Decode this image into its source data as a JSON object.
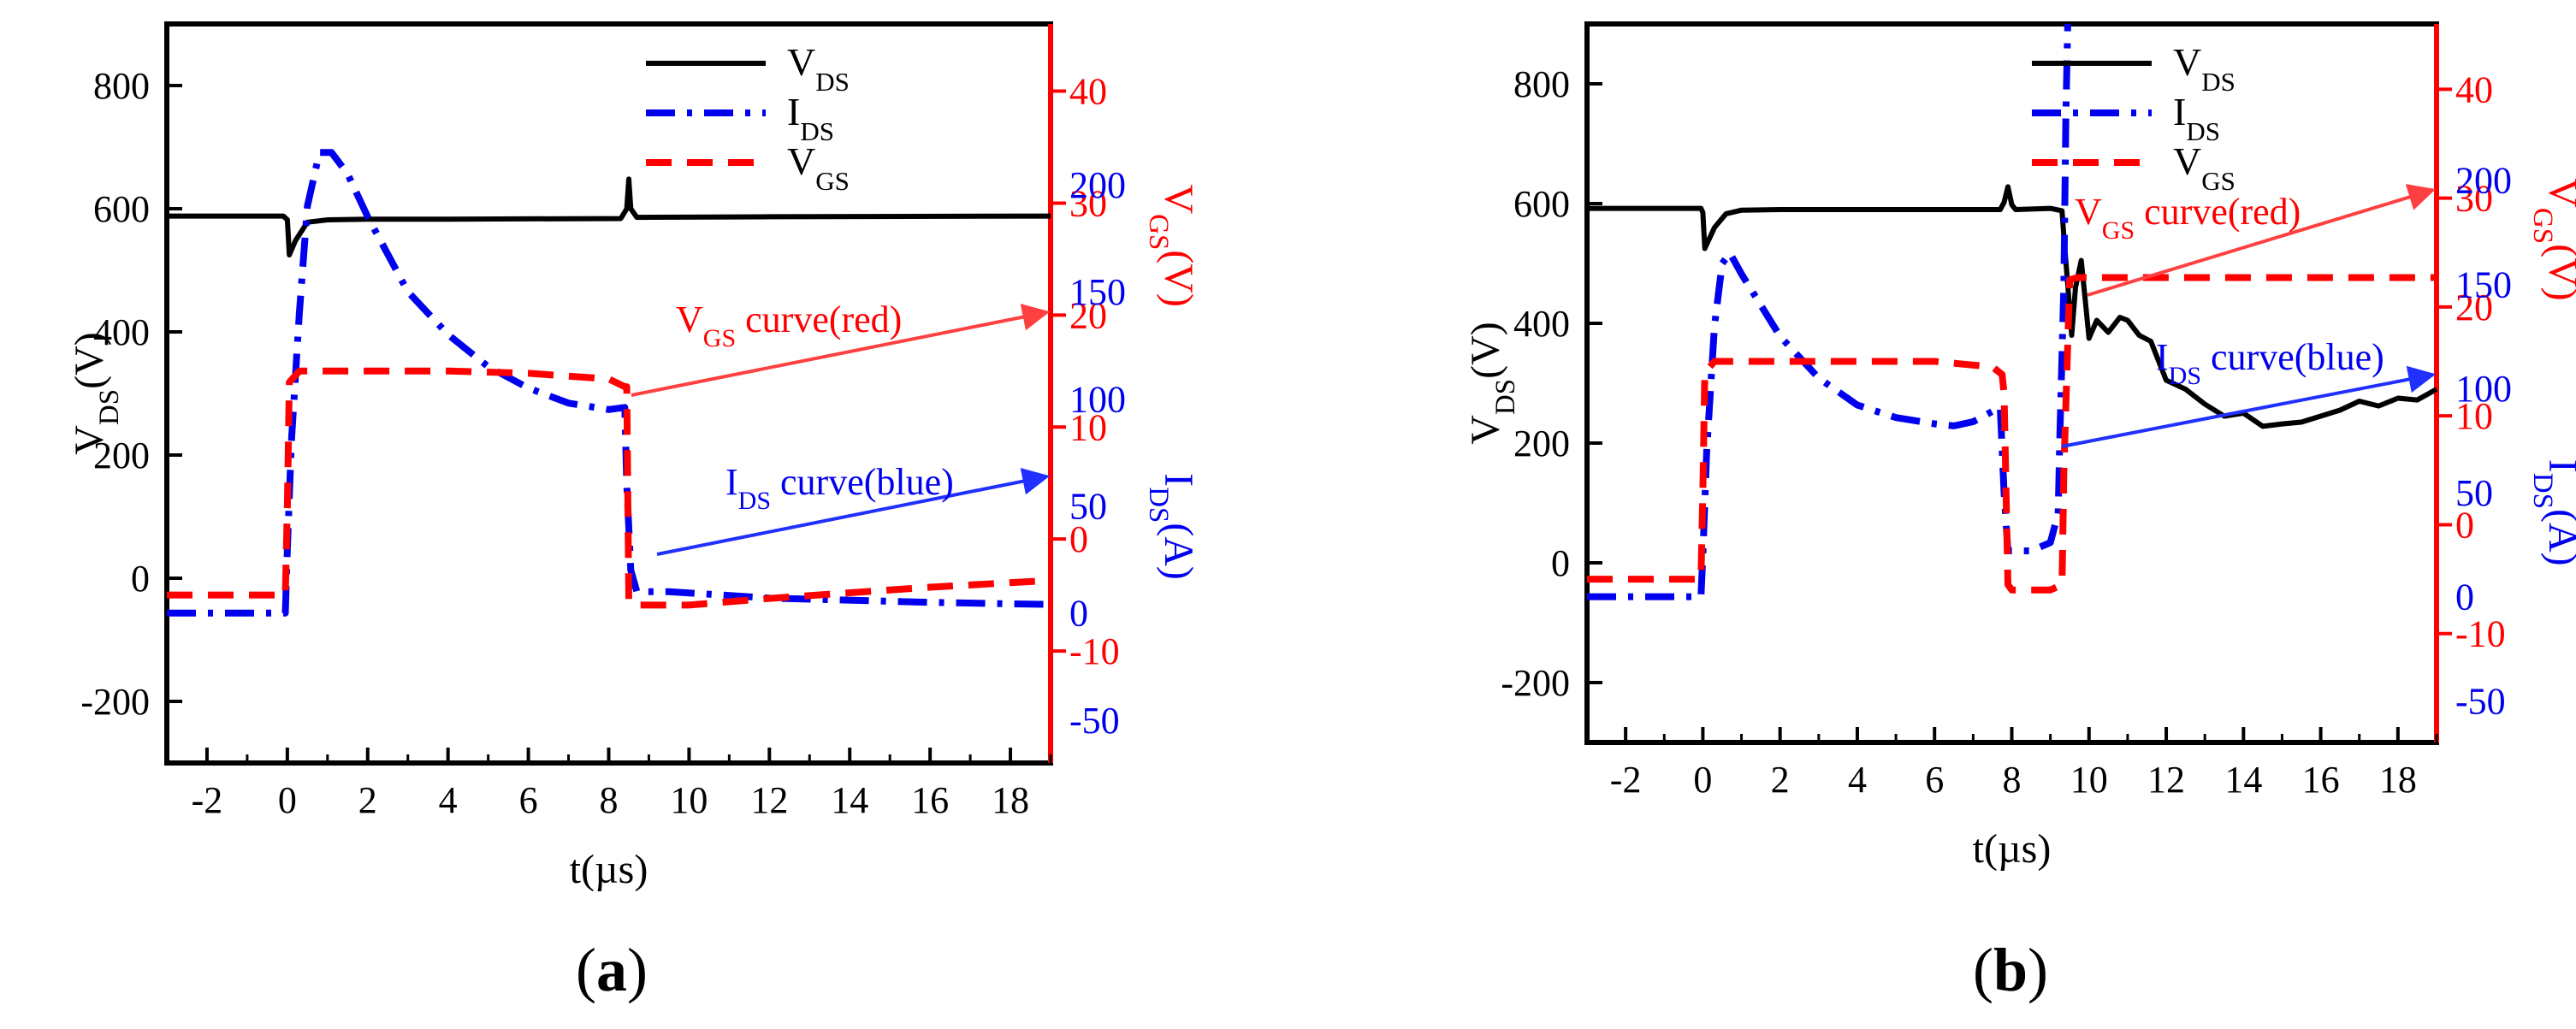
{
  "colors": {
    "vds": "#000000",
    "ids": "#0000ee",
    "vgs": "#ff0000",
    "annot_vgs": "#ff4040",
    "annot_ids": "#2030ff"
  },
  "chart_data": [
    {
      "panel": "(a)",
      "panel_letter": "a",
      "type": "line",
      "xlabel": "t(µs)",
      "xlim": [
        -3,
        19
      ],
      "xticks": [
        -2,
        0,
        2,
        4,
        6,
        8,
        10,
        12,
        14,
        16,
        18
      ],
      "y_left": {
        "name": "V",
        "sub": "DS",
        "unit": "(V)",
        "lim": [
          -300,
          900
        ],
        "ticks": [
          -200,
          0,
          200,
          400,
          600,
          800
        ]
      },
      "y_vgs": {
        "name": "V",
        "sub": "GS",
        "unit": "(V)",
        "lim": [
          -20,
          46
        ],
        "ticks": [
          -10,
          0,
          10,
          20,
          30,
          40
        ]
      },
      "y_ids": {
        "name": "I",
        "sub": "DS",
        "unit": "(A)",
        "lim": [
          -70,
          275
        ],
        "ticks": [
          -50,
          0,
          50,
          100,
          150,
          200
        ]
      },
      "legend": [
        {
          "name": "V",
          "sub": "DS",
          "style": "solid"
        },
        {
          "name": "I",
          "sub": "DS",
          "style": "dashdot"
        },
        {
          "name": "V",
          "sub": "GS",
          "style": "dashed"
        }
      ],
      "annotations": [
        {
          "pre": "V",
          "sub": "GS",
          "post": " curve(red)",
          "color_key": "annot_vgs"
        },
        {
          "pre": "I",
          "sub": "DS",
          "post": " curve(blue)",
          "color_key": "annot_ids"
        }
      ],
      "series": [
        {
          "name": "VDS",
          "axis": "left",
          "x": [
            -3,
            -0.1,
            0,
            0.05,
            0.2,
            0.5,
            1,
            2,
            4,
            8.3,
            8.45,
            8.5,
            8.55,
            8.7,
            12,
            19
          ],
          "y": [
            588,
            588,
            582,
            525,
            548,
            578,
            582,
            583,
            583,
            584,
            600,
            648,
            600,
            586,
            587,
            588
          ]
        },
        {
          "name": "IDS",
          "axis": "ids",
          "x": [
            -3,
            -0.05,
            0,
            0.1,
            0.3,
            0.5,
            0.8,
            1.1,
            1.5,
            2,
            3,
            4,
            5,
            6,
            7,
            8,
            8.4,
            8.45,
            8.55,
            8.7,
            9.5,
            12,
            16,
            19
          ],
          "y": [
            0,
            0,
            30,
            80,
            140,
            190,
            215,
            215,
            205,
            185,
            150,
            130,
            115,
            105,
            98,
            95,
            96,
            60,
            20,
            10,
            10,
            7,
            5,
            4
          ]
        },
        {
          "name": "VGS",
          "axis": "vgs",
          "x": [
            -3,
            -0.05,
            0,
            0.05,
            0.3,
            1,
            2,
            4,
            6,
            8,
            8.4,
            8.45,
            8.5,
            8.6,
            10,
            12,
            14,
            16,
            19
          ],
          "y": [
            -5,
            -5,
            3,
            14,
            15,
            15,
            15,
            15,
            14.8,
            14.3,
            13.6,
            13.6,
            -5.5,
            -5.9,
            -5.9,
            -5.3,
            -4.8,
            -4.3,
            -3.7
          ]
        }
      ]
    },
    {
      "panel": "(b)",
      "panel_letter": "b",
      "type": "line",
      "xlabel": "t(µs)",
      "xlim": [
        -3,
        19
      ],
      "xticks": [
        -2,
        0,
        2,
        4,
        6,
        8,
        10,
        12,
        14,
        16,
        18
      ],
      "y_left": {
        "name": "V",
        "sub": "DS",
        "unit": "(V)",
        "lim": [
          -300,
          900
        ],
        "ticks": [
          -200,
          0,
          200,
          400,
          600,
          800
        ]
      },
      "y_vgs": {
        "name": "V",
        "sub": "GS",
        "unit": "(V)",
        "lim": [
          -20,
          46
        ],
        "ticks": [
          -10,
          0,
          10,
          20,
          30,
          40
        ]
      },
      "y_ids": {
        "name": "I",
        "sub": "DS",
        "unit": "(A)",
        "lim": [
          -70,
          275
        ],
        "ticks": [
          -50,
          0,
          50,
          100,
          150,
          200
        ]
      },
      "legend": [
        {
          "name": "V",
          "sub": "DS",
          "style": "solid"
        },
        {
          "name": "I",
          "sub": "DS",
          "style": "dashdot"
        },
        {
          "name": "V",
          "sub": "GS",
          "style": "dashed"
        }
      ],
      "annotations": [
        {
          "pre": "V",
          "sub": "GS",
          "post": " curve(red)",
          "color_key": "annot_vgs"
        },
        {
          "pre": "I",
          "sub": "DS",
          "post": " curve(blue)",
          "color_key": "annot_ids"
        }
      ],
      "series": [
        {
          "name": "VDS",
          "axis": "left",
          "x": [
            -3,
            -0.05,
            0,
            0.05,
            0.3,
            0.6,
            1,
            2,
            4,
            7.7,
            7.8,
            7.9,
            8.0,
            8.1,
            9.0,
            9.3,
            9.35,
            9.45,
            9.55,
            9.65,
            9.8,
            9.9,
            10.0,
            10.2,
            10.5,
            10.8,
            11,
            11.3,
            11.6,
            12,
            12.5,
            13,
            13.5,
            14,
            14.5,
            15,
            15.5,
            16,
            16.5,
            17,
            17.5,
            18,
            18.5,
            19
          ],
          "y": [
            592,
            592,
            585,
            525,
            560,
            583,
            589,
            590,
            590,
            590,
            602,
            628,
            598,
            590,
            592,
            588,
            545,
            465,
            380,
            460,
            505,
            440,
            375,
            405,
            385,
            410,
            405,
            380,
            370,
            305,
            290,
            265,
            245,
            250,
            228,
            232,
            235,
            245,
            255,
            270,
            262,
            275,
            272,
            290
          ]
        },
        {
          "name": "IDS",
          "axis": "ids",
          "x": [
            -3,
            -0.05,
            0,
            0.1,
            0.3,
            0.5,
            0.7,
            1,
            2,
            3,
            4,
            5,
            6,
            6.5,
            7,
            7.5,
            7.7,
            7.8,
            7.9,
            8.5,
            9.0,
            9.2,
            9.25,
            9.35,
            9.4,
            9.45
          ],
          "y": [
            0,
            0,
            20,
            70,
            130,
            160,
            165,
            155,
            125,
            105,
            92,
            86,
            83,
            82,
            84,
            89,
            91,
            50,
            22,
            22,
            26,
            40,
            80,
            150,
            230,
            280
          ]
        },
        {
          "name": "VGS",
          "axis": "vgs",
          "x": [
            -3,
            -0.05,
            0,
            0.05,
            0.3,
            1,
            2,
            4,
            6,
            7.5,
            7.75,
            7.8,
            7.9,
            8.0,
            9.0,
            9.3,
            9.35,
            9.5,
            9.7,
            10,
            19
          ],
          "y": [
            -5,
            -5,
            3,
            14,
            15,
            15,
            15,
            15,
            15,
            14.5,
            13.8,
            12,
            -5.5,
            -6,
            -6,
            -5.5,
            5,
            22.5,
            22.7,
            22.7,
            22.7
          ]
        }
      ]
    }
  ]
}
